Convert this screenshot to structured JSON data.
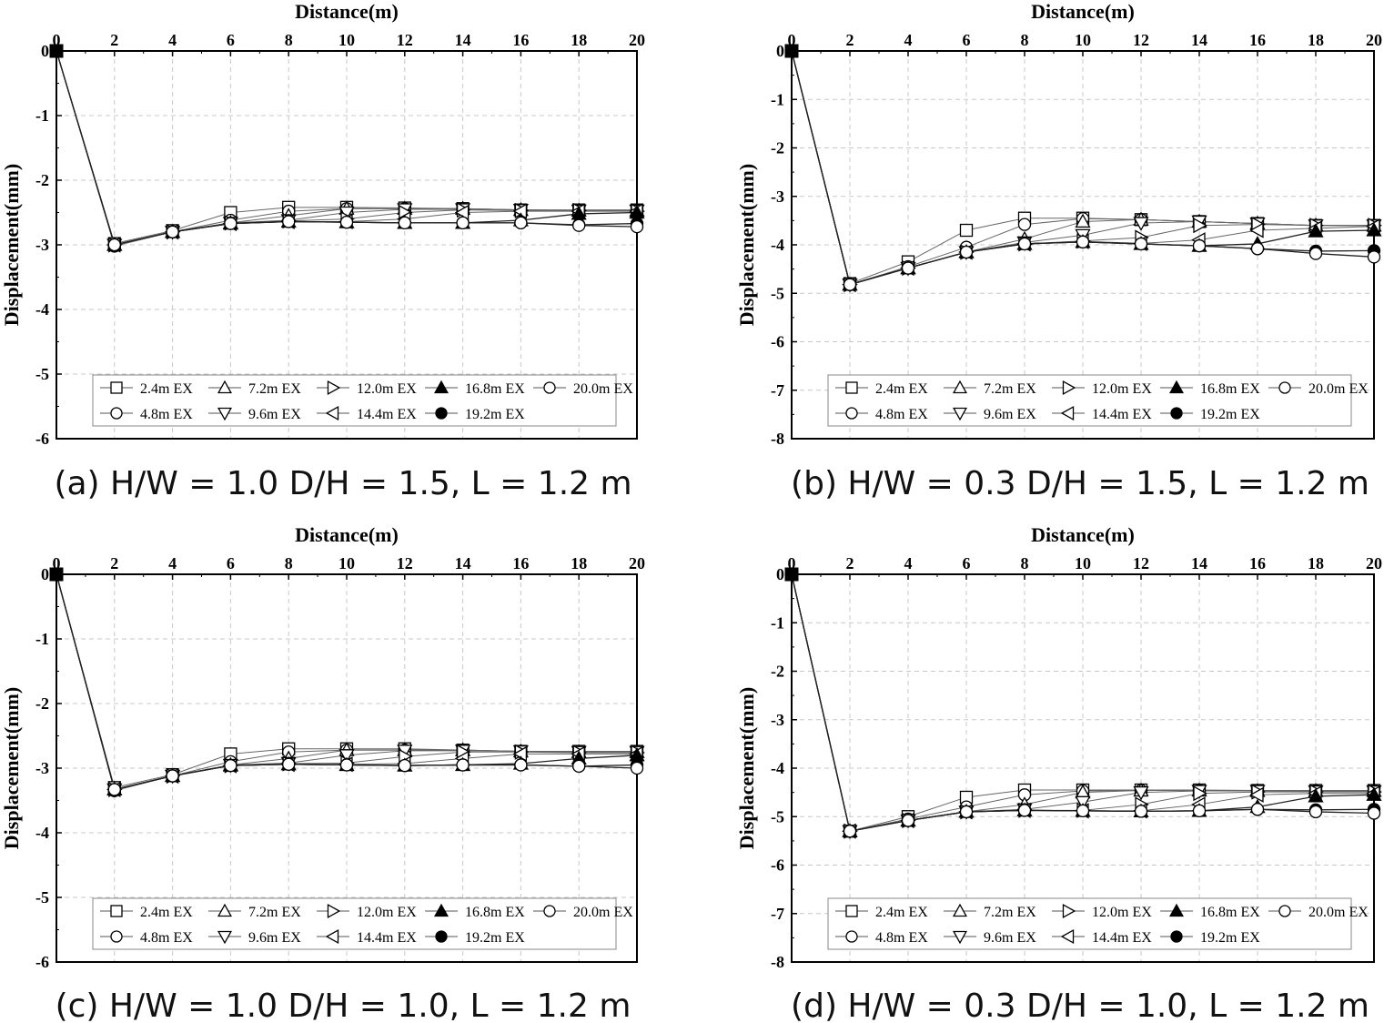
{
  "figure": {
    "captions": [
      "(a) H/W = 1.0 D/H = 1.5, L = 1.2 m",
      "(b) H/W = 0.3 D/H = 1.5, L = 1.2 m",
      "(c) H/W = 1.0 D/H = 1.0, L = 1.2 m",
      "(d) H/W = 0.3 D/H = 1.0, L = 1.2 m"
    ]
  },
  "chart_data": [
    {
      "type": "line",
      "caption": "(a) H/W = 1.0 D/H = 1.5, L = 1.2 m",
      "title": "",
      "xlabel": "Distance(m)",
      "ylabel": "Displacement(mm)",
      "xlim": [
        0,
        20
      ],
      "ylim": [
        -6,
        0
      ],
      "x_axis_position": "top",
      "xticks": [
        0,
        2,
        4,
        6,
        8,
        10,
        12,
        14,
        16,
        18,
        20
      ],
      "yticks": [
        0,
        -1,
        -2,
        -3,
        -4,
        -5,
        -6
      ],
      "grid": true,
      "legend": {
        "position": "bottom-inside",
        "columns": 5
      },
      "x": [
        0,
        2,
        4,
        6,
        8,
        10,
        12,
        14,
        16,
        18,
        20
      ],
      "series": [
        {
          "name": "2.4m EX",
          "marker": "square-open",
          "values": [
            0,
            -2.98,
            -2.78,
            -2.5,
            -2.42,
            -2.42,
            -2.43,
            -2.44,
            -2.46,
            -2.46,
            -2.46
          ]
        },
        {
          "name": "4.8m EX",
          "marker": "circle-open",
          "values": [
            0,
            -3.02,
            -2.8,
            -2.62,
            -2.48,
            -2.44,
            -2.44,
            -2.44,
            -2.46,
            -2.47,
            -2.47
          ]
        },
        {
          "name": "7.2m EX",
          "marker": "triangle-up-open",
          "values": [
            0,
            -3.0,
            -2.8,
            -2.66,
            -2.55,
            -2.44,
            -2.44,
            -2.44,
            -2.46,
            -2.47,
            -2.47
          ]
        },
        {
          "name": "9.6m EX",
          "marker": "triangle-down-open",
          "values": [
            0,
            -3.0,
            -2.8,
            -2.66,
            -2.62,
            -2.5,
            -2.45,
            -2.45,
            -2.46,
            -2.47,
            -2.47
          ]
        },
        {
          "name": "12.0m EX",
          "marker": "triangle-right-open",
          "values": [
            0,
            -3.0,
            -2.8,
            -2.66,
            -2.63,
            -2.6,
            -2.5,
            -2.46,
            -2.47,
            -2.47,
            -2.48
          ]
        },
        {
          "name": "14.4m EX",
          "marker": "triangle-left-open",
          "values": [
            0,
            -3.0,
            -2.8,
            -2.67,
            -2.64,
            -2.64,
            -2.6,
            -2.5,
            -2.48,
            -2.48,
            -2.48
          ]
        },
        {
          "name": "16.8m EX",
          "marker": "triangle-up-filled",
          "values": [
            0,
            -3.0,
            -2.8,
            -2.67,
            -2.64,
            -2.65,
            -2.66,
            -2.66,
            -2.62,
            -2.52,
            -2.5
          ]
        },
        {
          "name": "19.2m EX",
          "marker": "circle-filled",
          "values": [
            0,
            -3.0,
            -2.8,
            -2.67,
            -2.64,
            -2.65,
            -2.66,
            -2.66,
            -2.66,
            -2.69,
            -2.67
          ]
        },
        {
          "name": "20.0m EX",
          "marker": "circle-open",
          "values": [
            0,
            -3.0,
            -2.8,
            -2.67,
            -2.64,
            -2.65,
            -2.66,
            -2.66,
            -2.66,
            -2.7,
            -2.72
          ]
        }
      ]
    },
    {
      "type": "line",
      "caption": "(b) H/W = 0.3 D/H = 1.5, L = 1.2 m",
      "title": "",
      "xlabel": "Distance(m)",
      "ylabel": "Displacement(mm)",
      "xlim": [
        0,
        20
      ],
      "ylim": [
        -8,
        0
      ],
      "x_axis_position": "top",
      "xticks": [
        0,
        2,
        4,
        6,
        8,
        10,
        12,
        14,
        16,
        18,
        20
      ],
      "yticks": [
        0,
        -1,
        -2,
        -3,
        -4,
        -5,
        -6,
        -7,
        -8
      ],
      "grid": true,
      "legend": {
        "position": "bottom-inside",
        "columns": 5
      },
      "x": [
        0,
        2,
        4,
        6,
        8,
        10,
        12,
        14,
        16,
        18,
        20
      ],
      "series": [
        {
          "name": "2.4m EX",
          "marker": "square-open",
          "values": [
            0,
            -4.8,
            -4.35,
            -3.7,
            -3.45,
            -3.45,
            -3.48,
            -3.52,
            -3.56,
            -3.6,
            -3.6
          ]
        },
        {
          "name": "4.8m EX",
          "marker": "circle-open",
          "values": [
            0,
            -4.82,
            -4.45,
            -4.05,
            -3.58,
            -3.46,
            -3.48,
            -3.52,
            -3.56,
            -3.6,
            -3.6
          ]
        },
        {
          "name": "7.2m EX",
          "marker": "triangle-up-open",
          "values": [
            0,
            -4.82,
            -4.48,
            -4.15,
            -3.88,
            -3.52,
            -3.48,
            -3.52,
            -3.56,
            -3.6,
            -3.6
          ]
        },
        {
          "name": "9.6m EX",
          "marker": "triangle-down-open",
          "values": [
            0,
            -4.82,
            -4.48,
            -4.15,
            -3.95,
            -3.8,
            -3.55,
            -3.52,
            -3.56,
            -3.6,
            -3.6
          ]
        },
        {
          "name": "12.0m EX",
          "marker": "triangle-right-open",
          "values": [
            0,
            -4.82,
            -4.48,
            -4.15,
            -3.98,
            -3.92,
            -3.85,
            -3.6,
            -3.58,
            -3.6,
            -3.6
          ]
        },
        {
          "name": "14.4m EX",
          "marker": "triangle-left-open",
          "values": [
            0,
            -4.82,
            -4.48,
            -4.15,
            -3.98,
            -3.93,
            -3.97,
            -3.9,
            -3.7,
            -3.66,
            -3.62
          ]
        },
        {
          "name": "16.8m EX",
          "marker": "triangle-up-filled",
          "values": [
            0,
            -4.82,
            -4.48,
            -4.15,
            -3.98,
            -3.94,
            -3.98,
            -4.02,
            -3.98,
            -3.72,
            -3.7
          ]
        },
        {
          "name": "19.2m EX",
          "marker": "circle-filled",
          "values": [
            0,
            -4.82,
            -4.48,
            -4.15,
            -3.98,
            -3.94,
            -3.98,
            -4.02,
            -4.08,
            -4.13,
            -4.12
          ]
        },
        {
          "name": "20.0m EX",
          "marker": "circle-open",
          "values": [
            0,
            -4.82,
            -4.48,
            -4.15,
            -3.98,
            -3.94,
            -3.98,
            -4.02,
            -4.08,
            -4.18,
            -4.25
          ]
        }
      ]
    },
    {
      "type": "line",
      "caption": "(c) H/W = 1.0 D/H = 1.0, L = 1.2 m",
      "title": "",
      "xlabel": "Distance(m)",
      "ylabel": "Displacement(mm)",
      "xlim": [
        0,
        20
      ],
      "ylim": [
        -6,
        0
      ],
      "x_axis_position": "top",
      "xticks": [
        0,
        2,
        4,
        6,
        8,
        10,
        12,
        14,
        16,
        18,
        20
      ],
      "yticks": [
        0,
        -1,
        -2,
        -3,
        -4,
        -5,
        -6
      ],
      "grid": true,
      "legend": {
        "position": "bottom-inside",
        "columns": 5
      },
      "x": [
        0,
        2,
        4,
        6,
        8,
        10,
        12,
        14,
        16,
        18,
        20
      ],
      "series": [
        {
          "name": "2.4m EX",
          "marker": "square-open",
          "values": [
            0,
            -3.3,
            -3.1,
            -2.78,
            -2.7,
            -2.7,
            -2.7,
            -2.72,
            -2.74,
            -2.74,
            -2.74
          ]
        },
        {
          "name": "4.8m EX",
          "marker": "circle-open",
          "values": [
            0,
            -3.35,
            -3.12,
            -2.9,
            -2.75,
            -2.72,
            -2.72,
            -2.72,
            -2.74,
            -2.75,
            -2.75
          ]
        },
        {
          "name": "7.2m EX",
          "marker": "triangle-up-open",
          "values": [
            0,
            -3.33,
            -3.12,
            -2.95,
            -2.85,
            -2.72,
            -2.72,
            -2.72,
            -2.74,
            -2.75,
            -2.75
          ]
        },
        {
          "name": "9.6m EX",
          "marker": "triangle-down-open",
          "values": [
            0,
            -3.33,
            -3.12,
            -2.95,
            -2.92,
            -2.8,
            -2.73,
            -2.73,
            -2.74,
            -2.75,
            -2.75
          ]
        },
        {
          "name": "12.0m EX",
          "marker": "triangle-right-open",
          "values": [
            0,
            -3.33,
            -3.12,
            -2.96,
            -2.93,
            -2.92,
            -2.82,
            -2.75,
            -2.75,
            -2.76,
            -2.76
          ]
        },
        {
          "name": "14.4m EX",
          "marker": "triangle-left-open",
          "values": [
            0,
            -3.33,
            -3.12,
            -2.96,
            -2.94,
            -2.94,
            -2.93,
            -2.85,
            -2.78,
            -2.78,
            -2.78
          ]
        },
        {
          "name": "16.8m EX",
          "marker": "triangle-up-filled",
          "values": [
            0,
            -3.33,
            -3.12,
            -2.96,
            -2.94,
            -2.95,
            -2.96,
            -2.95,
            -2.93,
            -2.85,
            -2.8
          ]
        },
        {
          "name": "19.2m EX",
          "marker": "circle-filled",
          "values": [
            0,
            -3.33,
            -3.12,
            -2.96,
            -2.94,
            -2.95,
            -2.96,
            -2.95,
            -2.95,
            -2.97,
            -2.95
          ]
        },
        {
          "name": "20.0m EX",
          "marker": "circle-open",
          "values": [
            0,
            -3.33,
            -3.12,
            -2.96,
            -2.94,
            -2.95,
            -2.96,
            -2.95,
            -2.95,
            -2.97,
            -3.0
          ]
        }
      ]
    },
    {
      "type": "line",
      "caption": "(d) H/W = 0.3 D/H = 1.0, L = 1.2 m",
      "title": "",
      "xlabel": "Distance(m)",
      "ylabel": "Displacement(mm)",
      "xlim": [
        0,
        20
      ],
      "ylim": [
        -8,
        0
      ],
      "x_axis_position": "top",
      "xticks": [
        0,
        2,
        4,
        6,
        8,
        10,
        12,
        14,
        16,
        18,
        20
      ],
      "yticks": [
        0,
        -1,
        -2,
        -3,
        -4,
        -5,
        -6,
        -7,
        -8
      ],
      "grid": true,
      "legend": {
        "position": "bottom-inside",
        "columns": 5
      },
      "x": [
        0,
        2,
        4,
        6,
        8,
        10,
        12,
        14,
        16,
        18,
        20
      ],
      "series": [
        {
          "name": "2.4m EX",
          "marker": "square-open",
          "values": [
            0,
            -5.3,
            -5.0,
            -4.6,
            -4.45,
            -4.45,
            -4.45,
            -4.45,
            -4.46,
            -4.46,
            -4.46
          ]
        },
        {
          "name": "4.8m EX",
          "marker": "circle-open",
          "values": [
            0,
            -5.3,
            -5.05,
            -4.8,
            -4.55,
            -4.47,
            -4.46,
            -4.46,
            -4.47,
            -4.47,
            -4.47
          ]
        },
        {
          "name": "7.2m EX",
          "marker": "triangle-up-open",
          "values": [
            0,
            -5.3,
            -5.08,
            -4.9,
            -4.75,
            -4.5,
            -4.46,
            -4.46,
            -4.47,
            -4.47,
            -4.47
          ]
        },
        {
          "name": "9.6m EX",
          "marker": "triangle-down-open",
          "values": [
            0,
            -5.3,
            -5.08,
            -4.9,
            -4.85,
            -4.7,
            -4.5,
            -4.47,
            -4.47,
            -4.48,
            -4.48
          ]
        },
        {
          "name": "12.0m EX",
          "marker": "triangle-right-open",
          "values": [
            0,
            -5.3,
            -5.08,
            -4.9,
            -4.87,
            -4.87,
            -4.75,
            -4.52,
            -4.49,
            -4.49,
            -4.49
          ]
        },
        {
          "name": "14.4m EX",
          "marker": "triangle-left-open",
          "values": [
            0,
            -5.3,
            -5.08,
            -4.9,
            -4.87,
            -4.88,
            -4.88,
            -4.75,
            -4.55,
            -4.52,
            -4.52
          ]
        },
        {
          "name": "16.8m EX",
          "marker": "triangle-up-filled",
          "values": [
            0,
            -5.3,
            -5.08,
            -4.9,
            -4.87,
            -4.88,
            -4.89,
            -4.88,
            -4.8,
            -4.58,
            -4.55
          ]
        },
        {
          "name": "19.2m EX",
          "marker": "circle-filled",
          "values": [
            0,
            -5.3,
            -5.08,
            -4.9,
            -4.87,
            -4.88,
            -4.89,
            -4.88,
            -4.85,
            -4.86,
            -4.85
          ]
        },
        {
          "name": "20.0m EX",
          "marker": "circle-open",
          "values": [
            0,
            -5.3,
            -5.08,
            -4.9,
            -4.87,
            -4.88,
            -4.89,
            -4.88,
            -4.85,
            -4.9,
            -4.93
          ]
        }
      ]
    }
  ]
}
